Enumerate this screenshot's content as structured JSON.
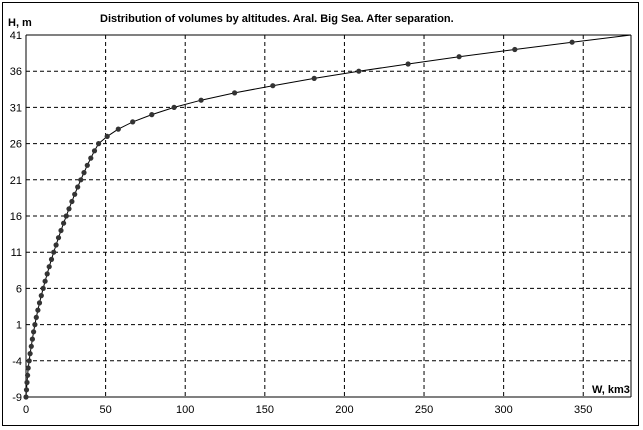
{
  "chart_data": {
    "type": "line",
    "title": "Distribution of volumes by altitudes. Aral. Big Sea. After separation.",
    "xlabel": "W, km3",
    "ylabel": "H, m",
    "xlim": [
      0,
      380
    ],
    "ylim": [
      -9,
      41
    ],
    "x_ticks": [
      "0",
      "50",
      "100",
      "150",
      "200",
      "250",
      "300",
      "350"
    ],
    "y_ticks": [
      "-9",
      "-4",
      "1",
      "6",
      "11",
      "16",
      "21",
      "26",
      "31",
      "36",
      "41"
    ],
    "grid": true,
    "series": [
      {
        "markers": true,
        "color": "#000000",
        "points": [
          [
            0,
            -9
          ],
          [
            0.3,
            -8
          ],
          [
            0.6,
            -7
          ],
          [
            1,
            -6
          ],
          [
            1.4,
            -5
          ],
          [
            2,
            -4
          ],
          [
            2.6,
            -3
          ],
          [
            3.3,
            -2
          ],
          [
            4,
            -1
          ],
          [
            4.8,
            0
          ],
          [
            5.6,
            1
          ],
          [
            6.5,
            2
          ],
          [
            7.5,
            3
          ],
          [
            8.5,
            4
          ],
          [
            9.6,
            5
          ],
          [
            10.8,
            6
          ],
          [
            12,
            7
          ],
          [
            13.3,
            8
          ],
          [
            14.6,
            9
          ],
          [
            16,
            10
          ],
          [
            17.4,
            11
          ],
          [
            18.9,
            12
          ],
          [
            20.4,
            13
          ],
          [
            22,
            14
          ],
          [
            23.6,
            15
          ],
          [
            25.3,
            16
          ],
          [
            27,
            17
          ],
          [
            28.8,
            18
          ],
          [
            30.6,
            19
          ],
          [
            32.5,
            20
          ],
          [
            34.4,
            21
          ],
          [
            36.4,
            22
          ],
          [
            38.5,
            23
          ],
          [
            40.7,
            24
          ],
          [
            43,
            25
          ],
          [
            45.6,
            26
          ],
          [
            51,
            27
          ],
          [
            58,
            28
          ],
          [
            67,
            29
          ],
          [
            79,
            30
          ],
          [
            93,
            31
          ],
          [
            110,
            32
          ],
          [
            131,
            33
          ],
          [
            155,
            34
          ],
          [
            181,
            35
          ],
          [
            209,
            36
          ],
          [
            240,
            37
          ],
          [
            272,
            38
          ],
          [
            307,
            39
          ],
          [
            343,
            40
          ],
          [
            380,
            41
          ]
        ]
      }
    ],
    "line_extends_to": [
      380,
      41
    ]
  }
}
